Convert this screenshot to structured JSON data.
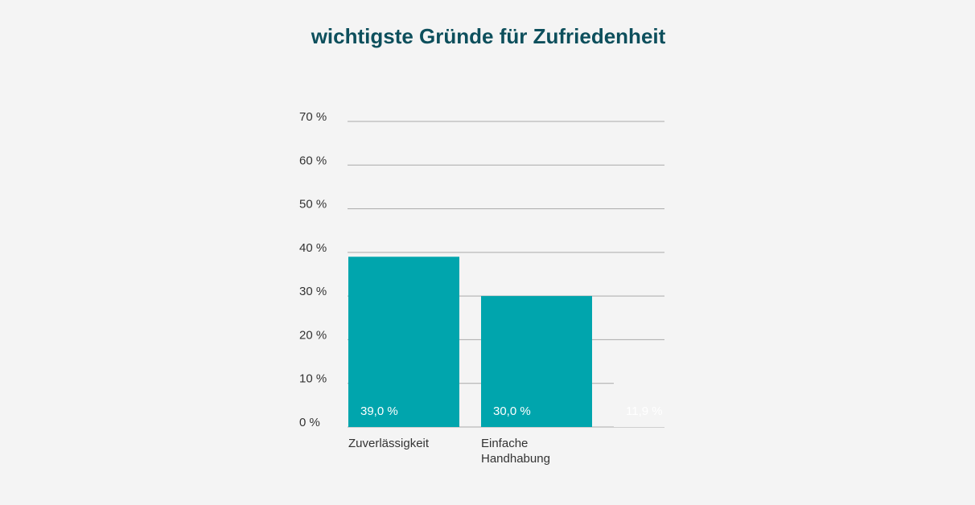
{
  "chart_data": {
    "type": "bar",
    "title": "wichtigste Gründe für Zufriedenheit",
    "categories": [
      "Zuverlässigkeit",
      "Einfache Handhabung",
      null
    ],
    "values": [
      39,
      30,
      11.9
    ],
    "value_labels": [
      "39,0 %",
      "30,0 %",
      "11,9 %"
    ],
    "colors": [
      "#00a5ad",
      "#00a5ad",
      "#f4f4f4"
    ],
    "ylim": [
      0,
      70
    ],
    "yticks": [
      {
        "value": 0,
        "label": "0 %"
      },
      {
        "value": 10,
        "label": "10 %"
      },
      {
        "value": 20,
        "label": "20 %"
      },
      {
        "value": 30,
        "label": "30 %"
      },
      {
        "value": 40,
        "label": "40 %"
      },
      {
        "value": 50,
        "label": "50 %"
      },
      {
        "value": 60,
        "label": "60 %"
      },
      {
        "value": 70,
        "label": "70 %"
      }
    ],
    "grid": true
  }
}
